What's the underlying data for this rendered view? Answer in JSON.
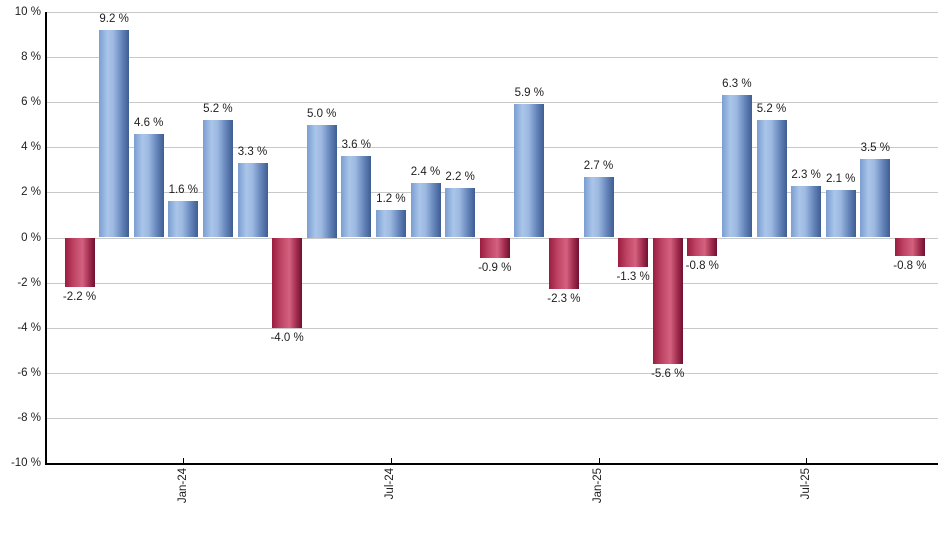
{
  "chart_data": {
    "type": "bar",
    "title": "",
    "xlabel": "",
    "ylabel": "",
    "values": [
      -2.2,
      9.2,
      4.6,
      1.6,
      5.2,
      3.3,
      -4.0,
      5.0,
      3.6,
      1.2,
      2.4,
      2.2,
      -0.9,
      5.9,
      -2.3,
      2.7,
      -1.3,
      -5.6,
      -0.8,
      6.3,
      5.2,
      2.3,
      2.1,
      3.5,
      -0.8
    ],
    "value_label_suffix": " %",
    "x_tick_labels": [
      {
        "bar_index": 3,
        "label": "Jan-24"
      },
      {
        "bar_index": 9,
        "label": "Jul-24"
      },
      {
        "bar_index": 15,
        "label": "Jan-25"
      },
      {
        "bar_index": 21,
        "label": "Jul-25"
      }
    ],
    "y_tick_labels": [
      "10 %",
      "8 %",
      "6 %",
      "4 %",
      "2 %",
      "0 %",
      "-2 %",
      "-4 %",
      "-6 %",
      "-8 %",
      "-10 %"
    ],
    "ylim": [
      -10,
      10
    ],
    "y_step": 2,
    "grid": true,
    "legend": false,
    "colors": {
      "positive_bar": "#6d92c6",
      "negative_bar": "#b03a58",
      "gridline": "#c9c9c9",
      "axis": "#000000",
      "label_text": "#1e1e1e",
      "background": "#ffffff"
    }
  }
}
